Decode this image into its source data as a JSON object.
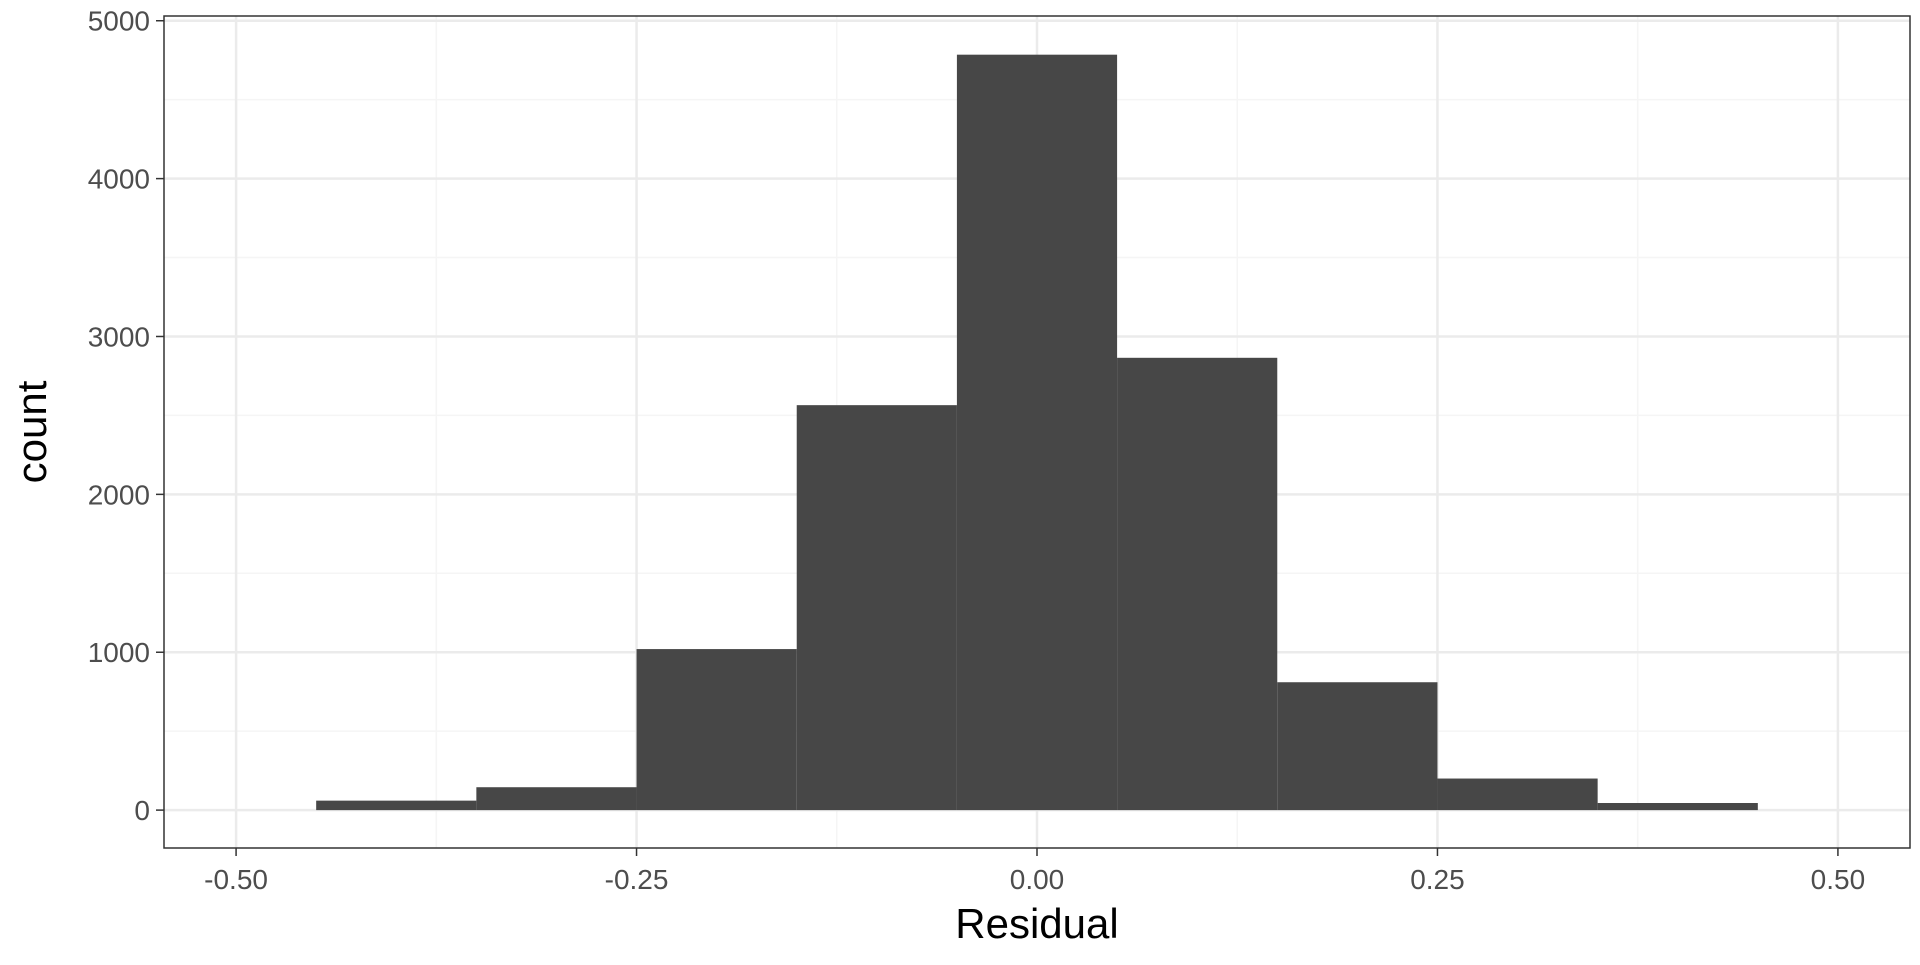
{
  "chart_data": {
    "type": "bar",
    "subtype": "histogram",
    "xlabel": "Residual",
    "ylabel": "count",
    "bin_width": 0.1,
    "bins": [
      {
        "x0": -0.45,
        "x1": -0.35,
        "count": 60
      },
      {
        "x0": -0.35,
        "x1": -0.25,
        "count": 145
      },
      {
        "x0": -0.25,
        "x1": -0.15,
        "count": 1020
      },
      {
        "x0": -0.15,
        "x1": -0.05,
        "count": 2565
      },
      {
        "x0": -0.05,
        "x1": 0.05,
        "count": 4785
      },
      {
        "x0": 0.05,
        "x1": 0.15,
        "count": 2865
      },
      {
        "x0": 0.15,
        "x1": 0.25,
        "count": 810
      },
      {
        "x0": 0.25,
        "x1": 0.35,
        "count": 200
      },
      {
        "x0": 0.35,
        "x1": 0.45,
        "count": 45
      }
    ],
    "xlim": [
      -0.545,
      0.545
    ],
    "ylim": [
      -240,
      5030
    ],
    "x_ticks": [
      -0.5,
      -0.25,
      0,
      0.25,
      0.5
    ],
    "x_tick_labels": [
      "-0.50",
      "-0.25",
      "0.00",
      "0.25",
      "0.50"
    ],
    "y_ticks": [
      0,
      1000,
      2000,
      3000,
      4000,
      5000
    ],
    "y_tick_labels": [
      "0",
      "1000",
      "2000",
      "3000",
      "4000",
      "5000"
    ],
    "x_minor_ticks": [
      -0.375,
      -0.125,
      0.125,
      0.375
    ],
    "y_minor_ticks": [
      500,
      1500,
      2500,
      3500,
      4500
    ],
    "grid": true,
    "colors": {
      "bar_fill": "#474747",
      "grid_major": "#ebebeb",
      "grid_minor": "#f5f5f5",
      "panel_border": "#333333",
      "tick_text": "#4d4d4d",
      "title_text": "#000000"
    }
  }
}
